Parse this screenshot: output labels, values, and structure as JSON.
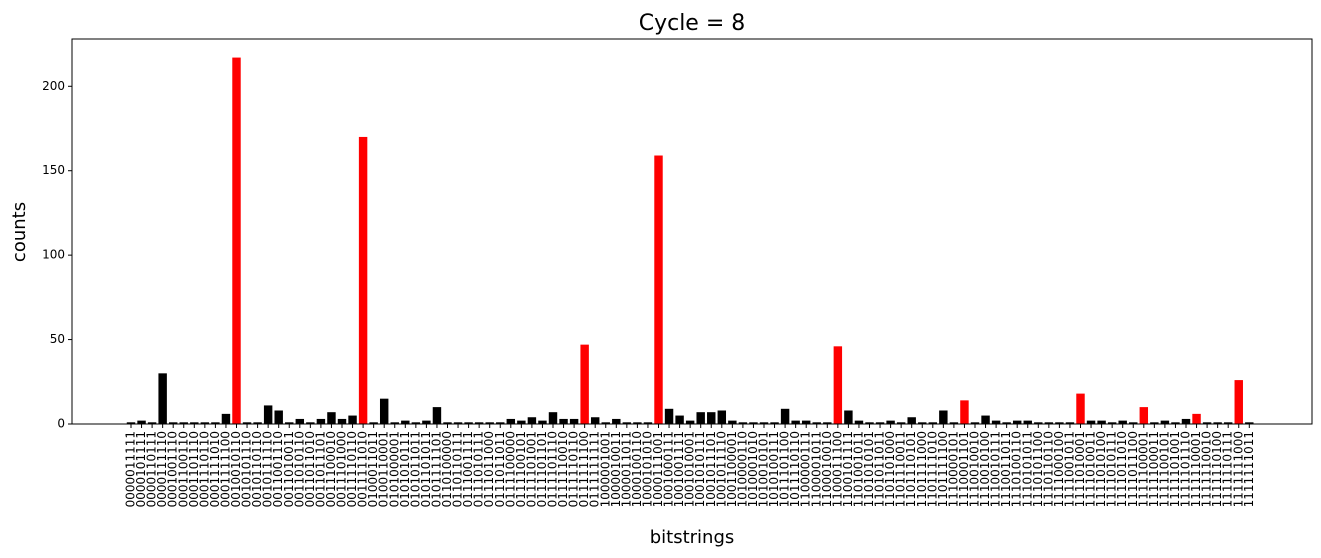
{
  "chart_data": {
    "type": "bar",
    "title": "Cycle  = 8",
    "x_label": "bitstrings",
    "y_label": "counts",
    "categories": [
      "0000011111",
      "0000101111",
      "0000110111",
      "0000111110",
      "0001001110",
      "0001100110",
      "0001101110",
      "0001110110",
      "0001111010",
      "0001111100",
      "0010010110",
      "0010101110",
      "0010110110",
      "0010111110",
      "0011001110",
      "0011010011",
      "0011010110",
      "0011011010",
      "0011011101",
      "0011100010",
      "0011101000",
      "0011110110",
      "0011111010",
      "0100011011",
      "0100110001",
      "0101000001",
      "0101010111",
      "0101011011",
      "0101101011",
      "0101111101",
      "0110100000",
      "0110110111",
      "0111001111",
      "0111010111",
      "0111011000",
      "0111011011",
      "0111100000",
      "0111100101",
      "0111101001",
      "0111101101",
      "0111101110",
      "0111110010",
      "0111110110",
      "0111111100",
      "0111111111",
      "1000001001",
      "1000010011",
      "1000011011",
      "1000100110",
      "1000101010",
      "1000111001",
      "1001000111",
      "1001001111",
      "1001010001",
      "1001010111",
      "1001011101",
      "1001011110",
      "1001100001",
      "1010000110",
      "1010001010",
      "1010010101",
      "1010100111",
      "1011101100",
      "1011110110",
      "1100000111",
      "1100001011",
      "1100010010",
      "1100011100",
      "1100101111",
      "1101001011",
      "1101010101",
      "1101011011",
      "1101101000",
      "1101110011",
      "1101110101",
      "1101111000",
      "1101111010",
      "1101111100",
      "1110000101",
      "1110001101",
      "1110010010",
      "1110010100",
      "1110010111",
      "1110011011",
      "1110100110",
      "1110101011",
      "1110101100",
      "1110110110",
      "1111000100",
      "1111001011",
      "1111010001",
      "1111010011",
      "1111010100",
      "1111010111",
      "1111011010",
      "1111011100",
      "1111100001",
      "1111100011",
      "1111100101",
      "1111101001",
      "1111101110",
      "1111110001",
      "1111110010",
      "1111110100",
      "1111110111",
      "1111111000",
      "1111111011"
    ],
    "values": [
      1,
      2,
      1,
      30,
      1,
      1,
      1,
      1,
      1,
      6,
      217,
      1,
      1,
      11,
      8,
      1,
      3,
      1,
      3,
      7,
      3,
      5,
      170,
      1,
      15,
      1,
      2,
      1,
      2,
      10,
      1,
      1,
      1,
      1,
      1,
      1,
      3,
      2,
      4,
      2,
      7,
      3,
      3,
      47,
      4,
      1,
      3,
      1,
      1,
      1,
      159,
      9,
      5,
      2,
      7,
      7,
      8,
      2,
      1,
      1,
      1,
      1,
      9,
      2,
      2,
      1,
      1,
      46,
      8,
      2,
      1,
      1,
      2,
      1,
      4,
      1,
      1,
      8,
      1,
      14,
      1,
      5,
      2,
      1,
      2,
      2,
      1,
      1,
      1,
      1,
      18,
      2,
      2,
      1,
      2,
      1,
      10,
      1,
      2,
      1,
      3,
      6,
      1,
      1,
      1,
      26,
      1
    ],
    "highlight": [
      10,
      22,
      43,
      50,
      67,
      79,
      90,
      96,
      101,
      105
    ],
    "color": "#000000",
    "highlight_color": "#ff0000",
    "ylim": [
      0,
      228
    ],
    "yticks": [
      0,
      50,
      100,
      150,
      200
    ],
    "grid": false
  }
}
